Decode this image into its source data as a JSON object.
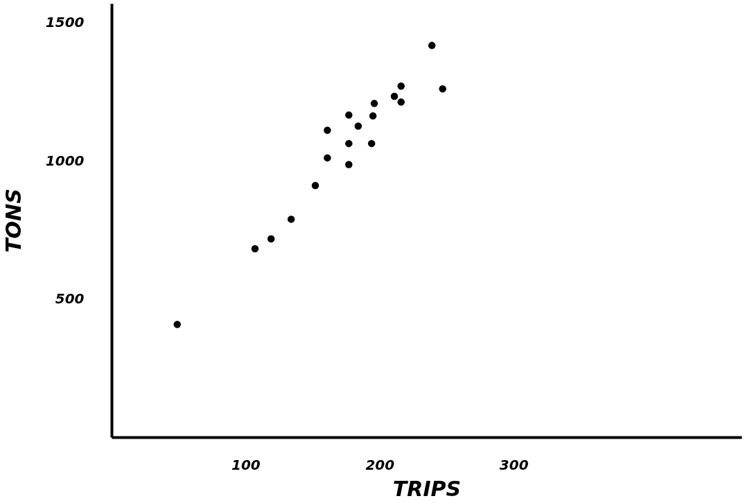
{
  "chart_data": {
    "type": "scatter",
    "xlabel": "TRIPS",
    "ylabel": "TONS",
    "x": [
      49,
      107,
      119,
      134,
      152,
      161,
      161,
      177,
      177,
      177,
      184,
      194,
      195,
      196,
      211,
      216,
      216,
      239,
      247
    ],
    "series": [
      {
        "color": "#000000",
        "values": [
          408,
          682,
          718,
          789,
          911,
          1111,
          1011,
          987,
          1063,
          1166,
          1126,
          1063,
          1163,
          1208,
          1234,
          1271,
          1213,
          1418,
          1261
        ]
      }
    ],
    "xlim": [
      0,
      470
    ],
    "xticks": [
      100,
      200,
      300
    ],
    "ylim": [
      0,
      1570
    ],
    "yticks": [
      500,
      1000,
      1500
    ],
    "grid": false
  }
}
